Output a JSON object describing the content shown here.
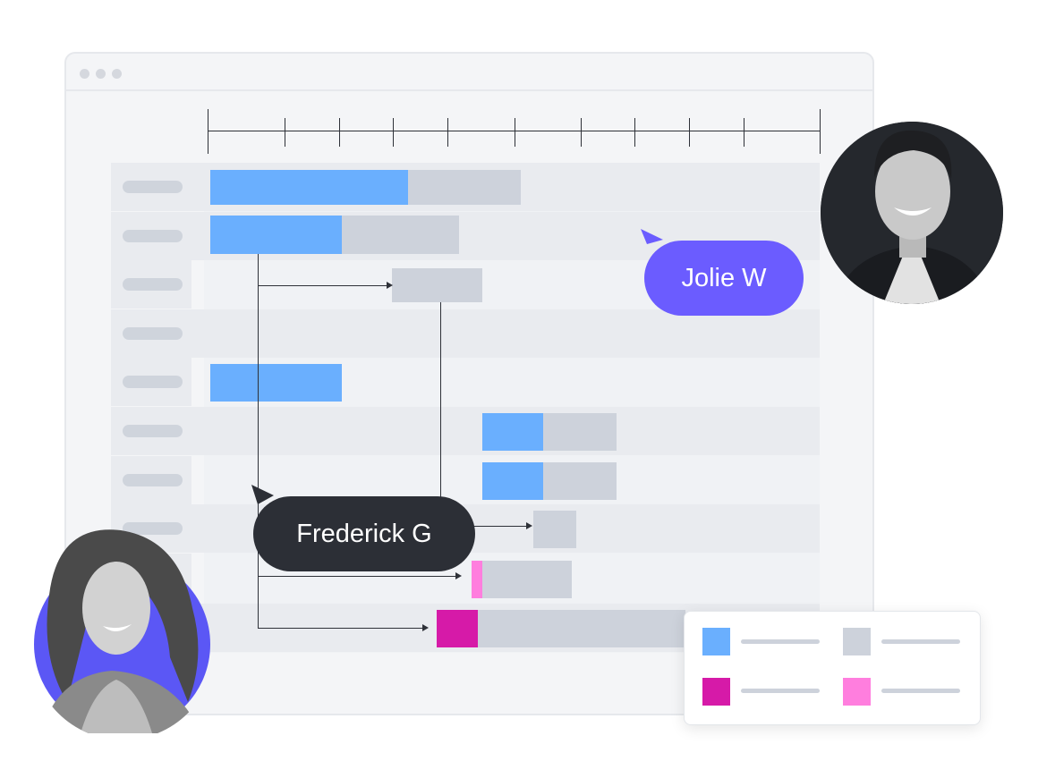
{
  "window": {
    "dots": [
      "",
      "",
      ""
    ]
  },
  "collaborators": [
    {
      "name": "Jolie W",
      "color": "#6b5cff"
    },
    {
      "name": "Frederick G",
      "color": "#2c2f36"
    }
  ],
  "chart_data": {
    "type": "gantt",
    "rows": 10,
    "colors": {
      "done": "#6aaffe",
      "remaining": "#cdd2db",
      "milestone": "#d61aa8",
      "milestone_light": "#ff7ede"
    }
  },
  "legend": [
    {
      "color": "#6aaffe",
      "label": ""
    },
    {
      "color": "#cdd2db",
      "label": ""
    },
    {
      "color": "#d61aa8",
      "label": ""
    },
    {
      "color": "#ff7ede",
      "label": ""
    }
  ]
}
